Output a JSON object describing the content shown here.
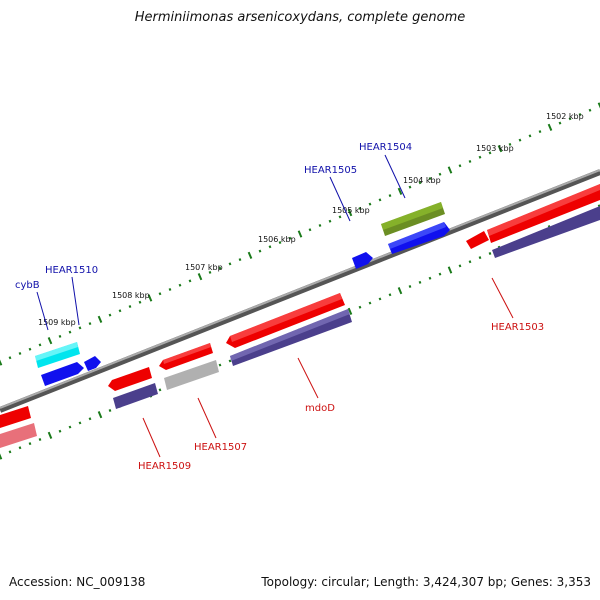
{
  "title": "Herminiimonas arsenicoxydans, complete genome",
  "footer": {
    "accession": "Accession: NC_009138",
    "summary": "Topology: circular; Length: 3,424,307 bp; Genes: 3,353"
  },
  "colors": {
    "forward_gene": "#ee0000",
    "reverse_gene": "#1010ee",
    "forward_cds_band": "#4b3f8c",
    "label_forward": "#cc1111",
    "label_reverse": "#1111aa",
    "ticks": "#1a7a1a",
    "backbone": "#808080"
  },
  "scale": {
    "unit": "kbp",
    "ticks": [
      {
        "label": "1502 kbp"
      },
      {
        "label": "1503 kbp"
      },
      {
        "label": "1504 kbp"
      },
      {
        "label": "1505 kbp"
      },
      {
        "label": "1506 kbp"
      },
      {
        "label": "1507 kbp"
      },
      {
        "label": "1508 kbp"
      },
      {
        "label": "1509 kbp"
      }
    ]
  },
  "gene_labels": [
    {
      "text": "HEAR1504",
      "strand": "reverse"
    },
    {
      "text": "HEAR1505",
      "strand": "reverse"
    },
    {
      "text": "HEAR1510",
      "strand": "reverse"
    },
    {
      "text": "cybB",
      "strand": "reverse"
    },
    {
      "text": "HEAR1503",
      "strand": "forward"
    },
    {
      "text": "mdoD",
      "strand": "forward"
    },
    {
      "text": "HEAR1507",
      "strand": "forward"
    },
    {
      "text": "HEAR1509",
      "strand": "forward"
    }
  ]
}
